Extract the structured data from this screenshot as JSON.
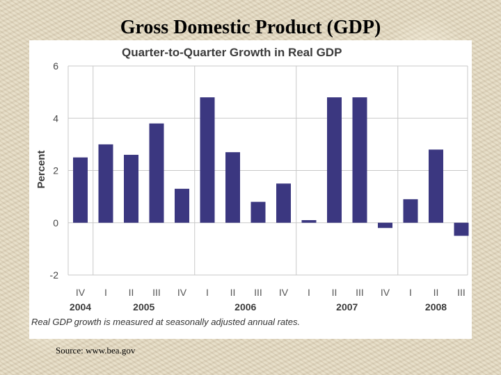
{
  "slide": {
    "title": "Gross Domestic Product (GDP)",
    "source": "Source: www.bea.gov"
  },
  "colors": {
    "bar": "#3b3780",
    "grid": "#c8c8c8",
    "title_text": "#3a3a3a"
  },
  "chart_data": {
    "type": "bar",
    "title": "Quarter-to-Quarter Growth in Real GDP",
    "xlabel": "",
    "ylabel": "Percent",
    "ylim": [
      -2,
      6
    ],
    "yticks": [
      -2,
      0,
      2,
      4,
      6
    ],
    "grid": true,
    "footnote": "Real GDP growth is measured at seasonally adjusted annual rates.",
    "categories": [
      "IV",
      "I",
      "II",
      "III",
      "IV",
      "I",
      "II",
      "III",
      "IV",
      "I",
      "II",
      "III",
      "IV",
      "I",
      "II",
      "III"
    ],
    "values": [
      2.5,
      3.0,
      2.6,
      3.8,
      1.3,
      4.8,
      2.7,
      0.8,
      1.5,
      0.1,
      4.8,
      4.8,
      -0.2,
      0.9,
      2.8,
      -0.5
    ],
    "years": [
      {
        "label": "2004",
        "first_index": 0,
        "last_index": 0
      },
      {
        "label": "2005",
        "first_index": 1,
        "last_index": 4
      },
      {
        "label": "2006",
        "first_index": 5,
        "last_index": 8
      },
      {
        "label": "2007",
        "first_index": 9,
        "last_index": 12
      },
      {
        "label": "2008",
        "first_index": 13,
        "last_index": 15
      }
    ]
  }
}
